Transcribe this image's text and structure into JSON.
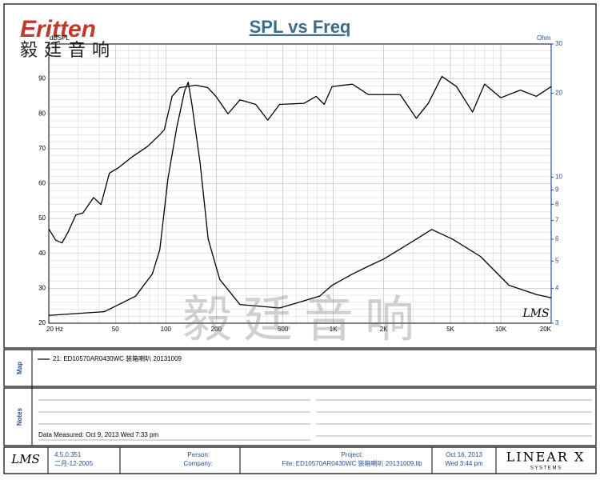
{
  "header": {
    "logo": "Eritten",
    "logo_cn": "毅廷音响",
    "watermark": "毅廷音响"
  },
  "chart_data": {
    "type": "line",
    "title": "SPL vs Freq",
    "y_label": "dBSPL",
    "y2_label": "Ohm",
    "xscale": "log",
    "xlim": [
      20,
      20000
    ],
    "xticks": [
      {
        "value": 20,
        "label": "20 Hz"
      },
      50,
      100,
      200,
      500,
      {
        "value": 1000,
        "label": "1K"
      },
      {
        "value": 2000,
        "label": "2K"
      },
      {
        "value": 5000,
        "label": "5K"
      },
      {
        "value": 10000,
        "label": "10K"
      },
      {
        "value": 20000,
        "label": "20K"
      }
    ],
    "ylim": [
      20,
      100
    ],
    "yticks": [
      20,
      30,
      40,
      50,
      60,
      70,
      80,
      90
    ],
    "y2scale": "log",
    "y2lim": [
      3,
      30
    ],
    "y2ticks": [
      3,
      4,
      5,
      6,
      7,
      8,
      9,
      10,
      20,
      30
    ],
    "grid": true,
    "minor_grid": true,
    "series": [
      {
        "name": "21: ED10570AR0430WC 装箱喇叭   20131009",
        "color": "#000000",
        "x": [
          20,
          22,
          24,
          26,
          29,
          32,
          37,
          41,
          46,
          52,
          63,
          78,
          92,
          98,
          109,
          121,
          151,
          178,
          199,
          235,
          277,
          344,
          406,
          478,
          669,
          790,
          882,
          983,
          1300,
          1620,
          2510,
          3130,
          3690,
          4450,
          5440,
          6780,
          8000,
          10000,
          13100,
          16300,
          20000
        ],
        "values": [
          47,
          43.8,
          43,
          46,
          51,
          51.6,
          56,
          54,
          63,
          64.5,
          67.7,
          70.7,
          74,
          75.5,
          85,
          87.5,
          88.2,
          87.5,
          85,
          80,
          84,
          82.7,
          78.2,
          82.7,
          83,
          85,
          82.7,
          87.8,
          88.5,
          85.5,
          85.5,
          78.7,
          83,
          90.7,
          87.8,
          80.5,
          88.5,
          84.6,
          86.8,
          85,
          87.8
        ]
      },
      {
        "color": "#000000",
        "axis": "y2",
        "x": [
          20,
          43,
          66,
          83,
          92,
          103,
          116,
          129,
          136,
          143,
          160,
          179,
          210,
          277,
          478,
          829,
          983,
          1300,
          1620,
          2010,
          3130,
          3870,
          5150,
          7570,
          11200,
          16300,
          20000
        ],
        "values": [
          3.2,
          3.3,
          3.75,
          4.5,
          5.5,
          9.9,
          15.0,
          20.2,
          21.9,
          18.3,
          11.3,
          6.0,
          4.3,
          3.5,
          3.4,
          3.75,
          4.1,
          4.5,
          4.8,
          5.1,
          6.0,
          6.5,
          6.0,
          5.2,
          4.1,
          3.8,
          3.7
        ]
      }
    ]
  },
  "panels": {
    "map": "Map",
    "notes": "Notes",
    "data_measured": "Data Measured: Oct  9, 2013  Wed  7:33 pm"
  },
  "footer": {
    "lms": "LMS",
    "version": "4.5.0.351",
    "build_date": "二月-12-2005",
    "person": "Person:",
    "company": "Company:",
    "project": "Project:",
    "file": "File: ED10570AR0430WC 装箱喇叭 20131009.lib",
    "date": "Oct 16, 2013",
    "time": "Wed  3:44 pm",
    "brand": "LINEAR X",
    "brand_sub": "S Y S T E M S"
  }
}
